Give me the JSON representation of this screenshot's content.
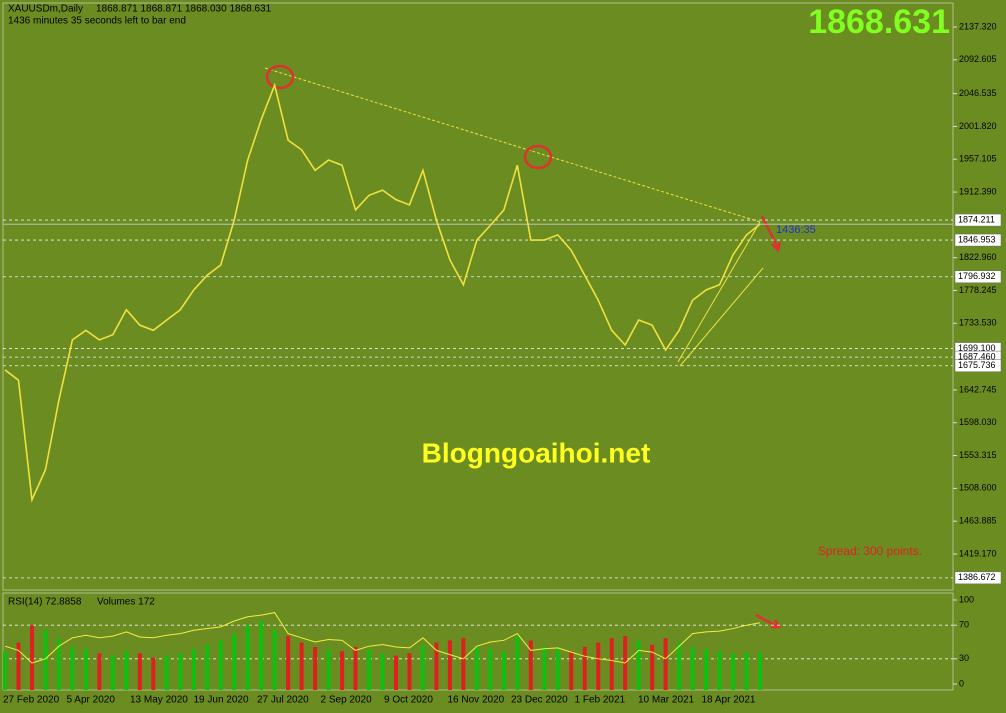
{
  "chart_data": [
    {
      "type": "line",
      "title": "XAUUSDm,Daily",
      "quote": "1868.871 1868.871 1868.030 1868.631",
      "subtitle": "1436 minutes 35 seconds left to bar end",
      "bid": 1868.631,
      "watermark": "Blogngoaihoi.net",
      "spread_label": "Spread: 300 points.",
      "timer": "1436:35",
      "color": "#f0e040",
      "values": [
        1670,
        1656,
        1493,
        1534,
        1629,
        1711,
        1724,
        1711,
        1718,
        1752,
        1731,
        1724,
        1738,
        1752,
        1779,
        1799,
        1813,
        1874,
        1956,
        2011,
        2058,
        1983,
        1970,
        1942,
        1956,
        1949,
        1888,
        1908,
        1915,
        1902,
        1895,
        1942,
        1874,
        1820,
        1786,
        1847,
        1867,
        1888,
        1949,
        1847,
        1847,
        1854,
        1833,
        1799,
        1765,
        1724,
        1704,
        1738,
        1731,
        1697,
        1724,
        1765,
        1779,
        1786,
        1827,
        1854,
        1868.631
      ],
      "ylim": [
        1370.11,
        2170.02
      ],
      "yticks": [
        {
          "value": 2137.32,
          "label": "2137.320"
        },
        2092.605,
        2046.535,
        {
          "value": 2001.82,
          "label": "2001.820"
        },
        1957.105,
        {
          "value": 1912.39,
          "label": "1912.390"
        },
        {
          "value": 1822.96,
          "label": "1822.960"
        },
        1778.245,
        {
          "value": 1733.53,
          "label": "1733.530"
        },
        1642.745,
        {
          "value": 1598.03,
          "label": "1598.030"
        },
        1553.315,
        {
          "value": 1508.6,
          "label": "1508.600"
        },
        1463.885,
        {
          "value": 1419.17,
          "label": "1419.170"
        }
      ],
      "levels": [
        1874.211,
        1846.953,
        1796.932,
        {
          "value": 1699.1,
          "label": "1699.100"
        },
        {
          "value": 1687.46,
          "label": "1687.460"
        },
        1675.736,
        1386.672
      ],
      "date_labels": [
        "27 Feb 2020",
        "5 Apr 2020",
        "13 May 2020",
        "19 Jun 2020",
        "27 Jul 2020",
        "2 Sep 2020",
        "9 Oct 2020",
        "16 Nov 2020",
        "23 Dec 2020",
        "1 Feb 2021",
        "10 Mar 2021",
        "18 Apr 2021"
      ]
    },
    {
      "type": "line",
      "title": "RSI(14) 72.8858",
      "volume_label": "Volumes 172",
      "color": "#f0f040",
      "values": [
        45,
        40,
        25,
        30,
        45,
        55,
        58,
        55,
        57,
        62,
        56,
        55,
        58,
        60,
        64,
        66,
        68,
        75,
        80,
        82,
        85,
        60,
        55,
        50,
        53,
        52,
        40,
        45,
        47,
        44,
        43,
        55,
        40,
        35,
        30,
        45,
        50,
        52,
        60,
        40,
        42,
        43,
        38,
        33,
        30,
        28,
        25,
        40,
        38,
        30,
        45,
        60,
        62,
        63,
        66,
        70,
        72.8858
      ],
      "volumes": [
        180,
        220,
        300,
        280,
        240,
        200,
        190,
        170,
        160,
        180,
        170,
        150,
        160,
        170,
        190,
        210,
        230,
        260,
        300,
        320,
        280,
        250,
        220,
        200,
        190,
        180,
        200,
        190,
        170,
        160,
        170,
        210,
        220,
        230,
        240,
        200,
        190,
        180,
        250,
        230,
        200,
        190,
        180,
        200,
        220,
        240,
        250,
        230,
        210,
        240,
        220,
        200,
        190,
        180,
        170,
        175,
        172
      ],
      "ylim": [
        -7.1,
        108.3
      ],
      "y2lim": [
        0,
        450
      ],
      "yticks": [
        100,
        70,
        30,
        0
      ],
      "levels": [
        70,
        30
      ]
    }
  ]
}
